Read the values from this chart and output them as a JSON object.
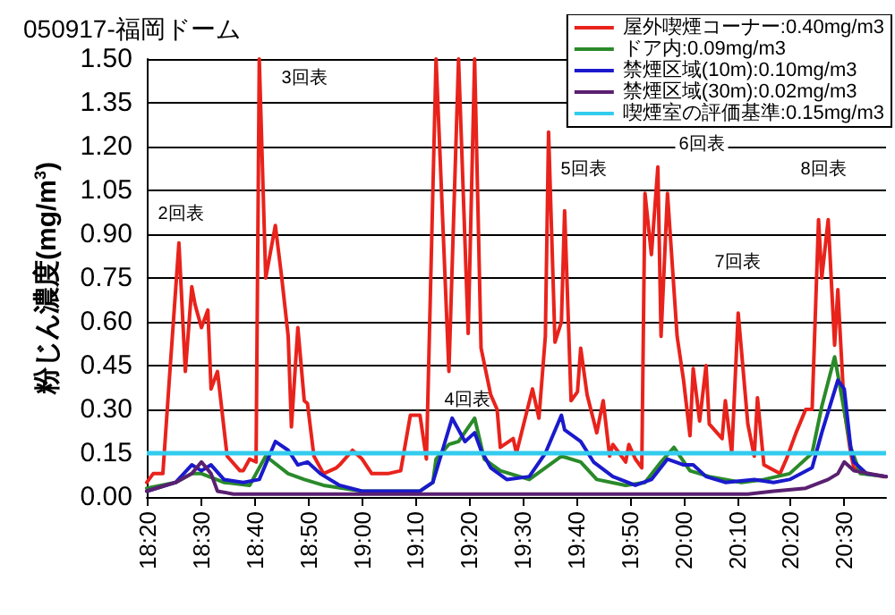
{
  "chart_data": {
    "type": "line",
    "title": "050917-福岡ドーム",
    "ylabel": "粉じん濃度(mg/m$^{3}$)",
    "xlim": [
      18.33,
      20.63
    ],
    "xticks": [
      {
        "value": 18.3333,
        "label": "18:20"
      },
      {
        "value": 18.5,
        "label": "18:30"
      },
      {
        "value": 18.6667,
        "label": "18:40"
      },
      {
        "value": 18.8333,
        "label": "18:50"
      },
      {
        "value": 19,
        "label": "19:00"
      },
      {
        "value": 19.1667,
        "label": "19:10"
      },
      {
        "value": 19.3333,
        "label": "19:20"
      },
      {
        "value": 19.5,
        "label": "19:30"
      },
      {
        "value": 19.6667,
        "label": "19:40"
      },
      {
        "value": 19.8333,
        "label": "19:50"
      },
      {
        "value": 20,
        "label": "20:00"
      },
      {
        "value": 20.1667,
        "label": "20:10"
      },
      {
        "value": 20.3333,
        "label": "20:20"
      },
      {
        "value": 20.5,
        "label": "20:30"
      }
    ],
    "ylim": [
      0,
      1.5
    ],
    "yticks": [
      {
        "value": 0,
        "label": "0.00"
      },
      {
        "value": 0.15,
        "label": "0.15"
      },
      {
        "value": 0.3,
        "label": "0.30"
      },
      {
        "value": 0.45,
        "label": "0.45"
      },
      {
        "value": 0.6,
        "label": "0.60"
      },
      {
        "value": 0.75,
        "label": "0.75"
      },
      {
        "value": 0.9,
        "label": "0.90"
      },
      {
        "value": 1.05,
        "label": "1.05"
      },
      {
        "value": 1.2,
        "label": "1.20"
      },
      {
        "value": 1.35,
        "label": "1.35"
      },
      {
        "value": 1.5,
        "label": "1.50"
      }
    ],
    "grid": "y",
    "legend": "top right",
    "marker": "none",
    "line_style": "solid",
    "series": [
      {
        "name": "屋外喫煙コーナー:0.40mg/m3",
        "color": "#e8231c",
        "x": [
          18.33,
          18.35,
          18.38,
          18.4,
          18.43,
          18.45,
          18.47,
          18.48,
          18.5,
          18.52,
          18.53,
          18.55,
          18.58,
          18.62,
          18.63,
          18.65,
          18.67,
          18.68,
          18.7,
          18.73,
          18.75,
          18.77,
          18.78,
          18.8,
          18.82,
          18.83,
          18.85,
          18.88,
          18.92,
          18.93,
          18.97,
          19,
          19.03,
          19.08,
          19.12,
          19.15,
          19.18,
          19.2,
          19.23,
          19.27,
          19.3,
          19.33,
          19.35,
          19.37,
          19.4,
          19.42,
          19.43,
          19.47,
          19.48,
          19.53,
          19.55,
          19.57,
          19.58,
          19.6,
          19.62,
          19.63,
          19.65,
          19.67,
          19.68,
          19.7,
          19.73,
          19.75,
          19.77,
          19.78,
          19.82,
          19.83,
          19.85,
          19.87,
          19.88,
          19.9,
          19.92,
          19.93,
          19.95,
          19.98,
          20,
          20.02,
          20.03,
          20.05,
          20.07,
          20.08,
          20.12,
          20.13,
          20.15,
          20.17,
          20.2,
          20.22,
          20.23,
          20.25,
          20.3,
          20.32,
          20.35,
          20.38,
          20.4,
          20.42,
          20.43,
          20.45,
          20.47,
          20.48,
          20.5,
          20.52,
          20.53,
          20.57,
          20.62,
          20.63
        ],
        "values": [
          0.05,
          0.08,
          0.08,
          0.4,
          0.87,
          0.43,
          0.72,
          0.66,
          0.58,
          0.64,
          0.37,
          0.43,
          0.14,
          0.09,
          0.09,
          0.13,
          0.12,
          1.5,
          0.75,
          0.93,
          0.75,
          0.55,
          0.24,
          0.58,
          0.33,
          0.32,
          0.14,
          0.08,
          0.1,
          0.11,
          0.16,
          0.13,
          0.08,
          0.08,
          0.09,
          0.28,
          0.28,
          0.13,
          1.5,
          0.43,
          1.5,
          0.56,
          1.5,
          0.51,
          0.35,
          0.3,
          0.17,
          0.2,
          0.15,
          0.37,
          0.27,
          0.55,
          1.25,
          0.53,
          0.6,
          0.98,
          0.33,
          0.36,
          0.51,
          0.35,
          0.22,
          0.33,
          0.14,
          0.18,
          0.12,
          0.18,
          0.13,
          0.1,
          1.04,
          0.83,
          1.13,
          0.55,
          1.04,
          0.55,
          0.4,
          0.21,
          0.44,
          0.26,
          0.45,
          0.25,
          0.2,
          0.33,
          0.15,
          0.63,
          0.25,
          0.14,
          0.34,
          0.11,
          0.08,
          0.13,
          0.22,
          0.3,
          0.3,
          0.95,
          0.75,
          0.95,
          0.52,
          0.71,
          0.3,
          0.15,
          0.1,
          0.08,
          0.07,
          0.07
        ]
      },
      {
        "name": "ドア内:0.09mg/m3",
        "color": "#2a8a2a",
        "x": [
          18.33,
          18.42,
          18.47,
          18.5,
          18.57,
          18.65,
          18.7,
          18.77,
          18.82,
          18.88,
          19,
          19.18,
          19.22,
          19.23,
          19.27,
          19.3,
          19.35,
          19.38,
          19.43,
          19.52,
          19.57,
          19.62,
          19.68,
          19.73,
          19.82,
          19.88,
          19.93,
          19.97,
          20.02,
          20.08,
          20.18,
          20.25,
          20.33,
          20.4,
          20.43,
          20.47,
          20.48,
          20.52,
          20.55,
          20.63
        ],
        "values": [
          0.03,
          0.05,
          0.08,
          0.08,
          0.05,
          0.04,
          0.14,
          0.08,
          0.06,
          0.04,
          0.02,
          0.02,
          0.05,
          0.13,
          0.18,
          0.19,
          0.27,
          0.13,
          0.09,
          0.06,
          0.1,
          0.14,
          0.12,
          0.06,
          0.04,
          0.05,
          0.12,
          0.17,
          0.09,
          0.07,
          0.05,
          0.06,
          0.08,
          0.15,
          0.31,
          0.48,
          0.42,
          0.17,
          0.08,
          0.07
        ]
      },
      {
        "name": "禁煙区域(10m):0.10mg/m3",
        "color": "#1a1acc",
        "x": [
          18.33,
          18.42,
          18.47,
          18.5,
          18.53,
          18.57,
          18.63,
          18.68,
          18.73,
          18.77,
          18.8,
          18.83,
          18.87,
          18.93,
          19,
          19.08,
          19.18,
          19.22,
          19.25,
          19.28,
          19.32,
          19.35,
          19.37,
          19.4,
          19.45,
          19.52,
          19.57,
          19.62,
          19.63,
          19.68,
          19.72,
          19.78,
          19.85,
          19.9,
          19.95,
          20,
          20.03,
          20.07,
          20.13,
          20.22,
          20.28,
          20.33,
          20.4,
          20.43,
          20.48,
          20.5,
          20.52,
          20.53,
          20.57,
          20.63
        ],
        "values": [
          0.02,
          0.05,
          0.11,
          0.09,
          0.11,
          0.06,
          0.05,
          0.06,
          0.19,
          0.16,
          0.11,
          0.12,
          0.08,
          0.04,
          0.02,
          0.02,
          0.02,
          0.05,
          0.16,
          0.27,
          0.19,
          0.22,
          0.16,
          0.1,
          0.06,
          0.07,
          0.15,
          0.28,
          0.23,
          0.19,
          0.12,
          0.07,
          0.04,
          0.06,
          0.13,
          0.11,
          0.11,
          0.07,
          0.05,
          0.06,
          0.05,
          0.06,
          0.1,
          0.22,
          0.4,
          0.37,
          0.17,
          0.12,
          0.08,
          0.07
        ]
      },
      {
        "name": "禁煙区域(30m):0.02mg/m3",
        "color": "#5a2070",
        "x": [
          18.33,
          18.42,
          18.47,
          18.5,
          18.53,
          18.55,
          18.6,
          19,
          19.5,
          20,
          20.2,
          20.28,
          20.38,
          20.45,
          20.48,
          20.5,
          20.53,
          20.63
        ],
        "values": [
          0.02,
          0.05,
          0.08,
          0.12,
          0.08,
          0.02,
          0.01,
          0.01,
          0.01,
          0.01,
          0.01,
          0.02,
          0.03,
          0.06,
          0.08,
          0.12,
          0.09,
          0.07
        ]
      }
    ],
    "ref_lines": [
      {
        "axis": "y",
        "value": 0.15,
        "label": "喫煙室の評価基準:0.15mg/m3",
        "color": "#33ccee"
      }
    ],
    "annotations": [
      "2回表",
      "3回表",
      "4回表",
      "5回表",
      "6回表",
      "7回表",
      "8回表"
    ]
  }
}
